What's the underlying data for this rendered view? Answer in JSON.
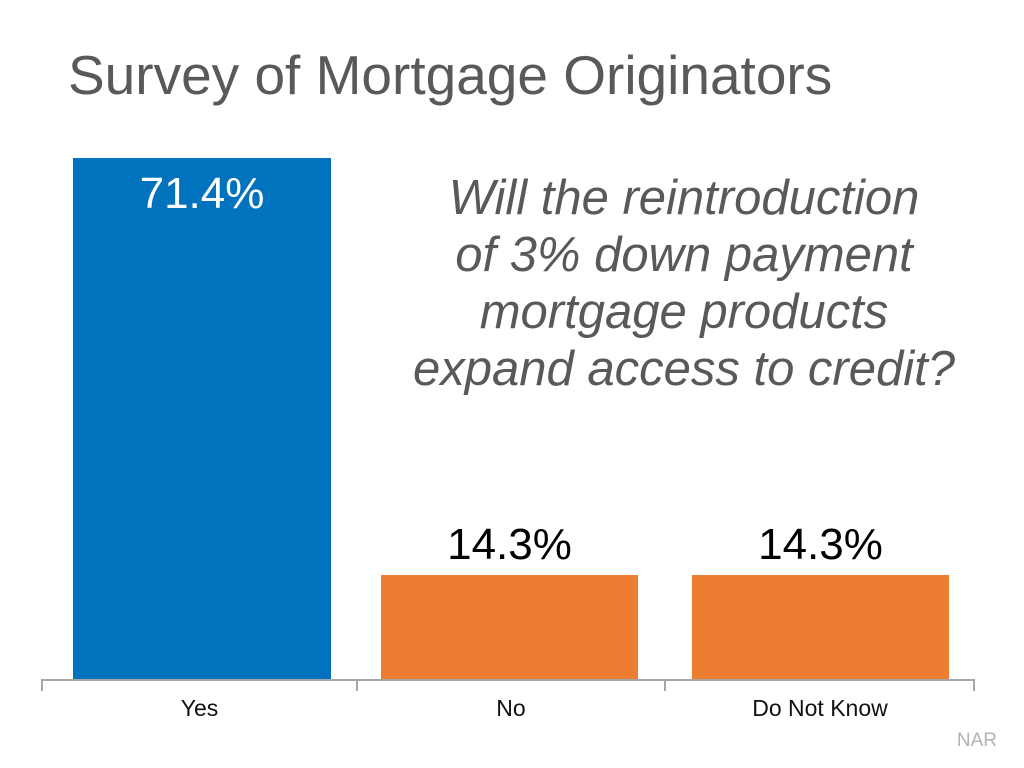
{
  "slide": {
    "title": "Survey of Mortgage Originators",
    "question_lines": {
      "line1": "Will the reintroduction",
      "line2": "of 3% down payment",
      "line3": "mortgage products",
      "line4": "expand access to credit?"
    },
    "attribution": "NAR"
  },
  "chart_data": {
    "type": "bar",
    "title": "Survey of Mortgage Originators",
    "subtitle": "Will the reintroduction of 3% down payment mortgage products expand access to credit?",
    "categories": [
      "Yes",
      "No",
      "Do Not Know"
    ],
    "values": [
      71.4,
      14.3,
      14.3
    ],
    "value_labels": [
      "71.4%",
      "14.3%",
      "14.3%"
    ],
    "xlabel": "",
    "ylabel": "",
    "ylim": [
      0,
      75
    ],
    "grid": false,
    "legend": "none",
    "bar_colors": [
      "#0072be",
      "#ed7d31",
      "#ed7d31"
    ],
    "value_label_colors": [
      "#ffffff",
      "#000000",
      "#000000"
    ],
    "value_label_positions": [
      "inside-top",
      "above",
      "above"
    ]
  },
  "colors": {
    "background": "#ffffff",
    "title_gray": "#595959",
    "axis_gray": "#a6a6a6",
    "attribution_gray": "#b3b3b3",
    "accent_blue": "#0072be",
    "accent_orange": "#ed7d31"
  }
}
